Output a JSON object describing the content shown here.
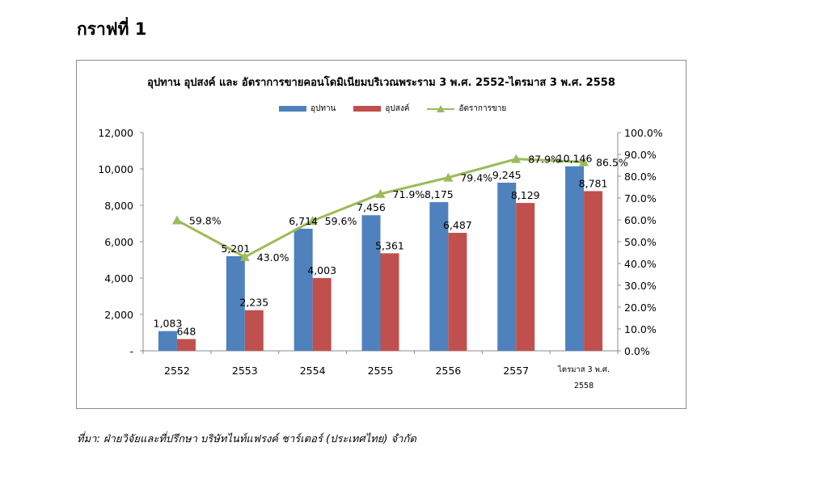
{
  "page": {
    "heading": "กราฟที่ 1",
    "source": "ที่มา: ฝ่ายวิจัยและที่ปรึกษา บริษัทไนท์แฟรงค์ ชาร์เตอร์ (ประเทศไทย) จำกัด"
  },
  "chart_data": {
    "type": "bar",
    "title": "อุปทาน อุปสงค์ และ อัตราการขายคอนโดมิเนียมบริเวณพระราม 3 พ.ศ. 2552-ไตรมาส 3 พ.ศ. 2558",
    "categories": [
      "2552",
      "2553",
      "2554",
      "2555",
      "2556",
      "2557",
      "ไตรมาส 3 พ.ศ. 2558"
    ],
    "category_lines": [
      [
        "2552"
      ],
      [
        "2553"
      ],
      [
        "2554"
      ],
      [
        "2555"
      ],
      [
        "2556"
      ],
      [
        "2557"
      ],
      [
        "ไตรมาส 3 พ.ศ.",
        "2558"
      ]
    ],
    "series": [
      {
        "name": "อุปทาน",
        "kind": "bar",
        "axis": "left",
        "color": "#4f81bd",
        "values": [
          1083,
          5201,
          6714,
          7456,
          8175,
          9245,
          10146
        ],
        "labels": [
          "1,083",
          "5,201",
          "6,714",
          "7,456",
          "8,175",
          "9,245",
          "10,146"
        ]
      },
      {
        "name": "อุปสงค์",
        "kind": "bar",
        "axis": "left",
        "color": "#c0504d",
        "values": [
          648,
          2235,
          4003,
          5361,
          6487,
          8129,
          8781
        ],
        "labels": [
          "648",
          "2,235",
          "4,003",
          "5,361",
          "6,487",
          "8,129",
          "8,781"
        ]
      },
      {
        "name": "อัตราการขาย",
        "kind": "line",
        "axis": "right",
        "color": "#9bbb59",
        "values": [
          59.8,
          43.0,
          59.6,
          71.9,
          79.4,
          87.9,
          86.5
        ],
        "labels": [
          "59.8%",
          "43.0%",
          "59.6%",
          "71.9%",
          "79.4%",
          "87.9%",
          "86.5%"
        ]
      }
    ],
    "y_left": {
      "min": 0,
      "max": 12000,
      "ticks": [
        0,
        2000,
        4000,
        6000,
        8000,
        10000,
        12000
      ],
      "tick_labels": [
        "-",
        "2,000",
        "4,000",
        "6,000",
        "8,000",
        "10,000",
        "12,000"
      ]
    },
    "y_right": {
      "min": 0,
      "max": 100,
      "ticks": [
        0,
        10,
        20,
        30,
        40,
        50,
        60,
        70,
        80,
        90,
        100
      ],
      "tick_labels": [
        "0.0%",
        "10.0%",
        "20.0%",
        "30.0%",
        "40.0%",
        "50.0%",
        "60.0%",
        "70.0%",
        "80.0%",
        "90.0%",
        "100.0%"
      ]
    },
    "legend_position": "top",
    "grid": false
  }
}
